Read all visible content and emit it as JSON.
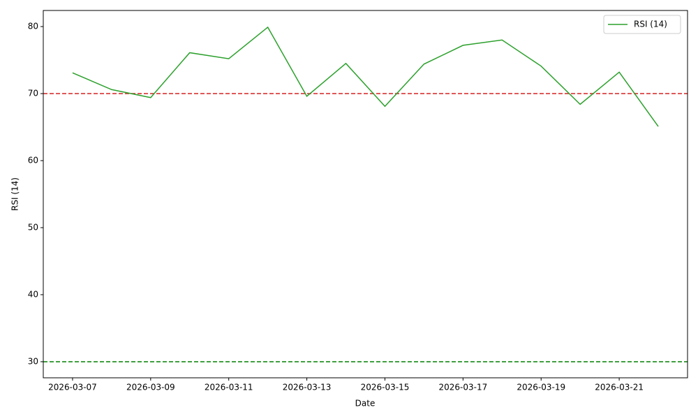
{
  "chart_data": {
    "type": "line",
    "xlabel": "Date",
    "ylabel": "RSI (14)",
    "x": [
      "2026-03-07",
      "2026-03-08",
      "2026-03-09",
      "2026-03-10",
      "2026-03-11",
      "2026-03-12",
      "2026-03-13",
      "2026-03-14",
      "2026-03-15",
      "2026-03-16",
      "2026-03-17",
      "2026-03-18",
      "2026-03-19",
      "2026-03-20",
      "2026-03-21",
      "2026-03-22"
    ],
    "series": [
      {
        "name": "RSI (14)",
        "color": "#2ca02c",
        "values": [
          73.1,
          70.6,
          69.4,
          76.1,
          75.2,
          79.9,
          69.6,
          74.5,
          68.1,
          74.4,
          77.2,
          78.0,
          74.1,
          68.4,
          73.2,
          65.1
        ]
      }
    ],
    "hlines": [
      {
        "value": 70,
        "color": "#d62020"
      },
      {
        "value": 30,
        "color": "#008000"
      }
    ],
    "xlim": [
      "2026-03-06T06:00:00Z",
      "2026-03-22T18:00:00Z"
    ],
    "xticks": [
      "2026-03-07",
      "2026-03-09",
      "2026-03-11",
      "2026-03-13",
      "2026-03-15",
      "2026-03-17",
      "2026-03-19",
      "2026-03-21"
    ],
    "ylim": [
      27.6,
      82.4
    ],
    "yticks": [
      30,
      40,
      50,
      60,
      70,
      80
    ],
    "legend": "upper right",
    "grid": false
  }
}
